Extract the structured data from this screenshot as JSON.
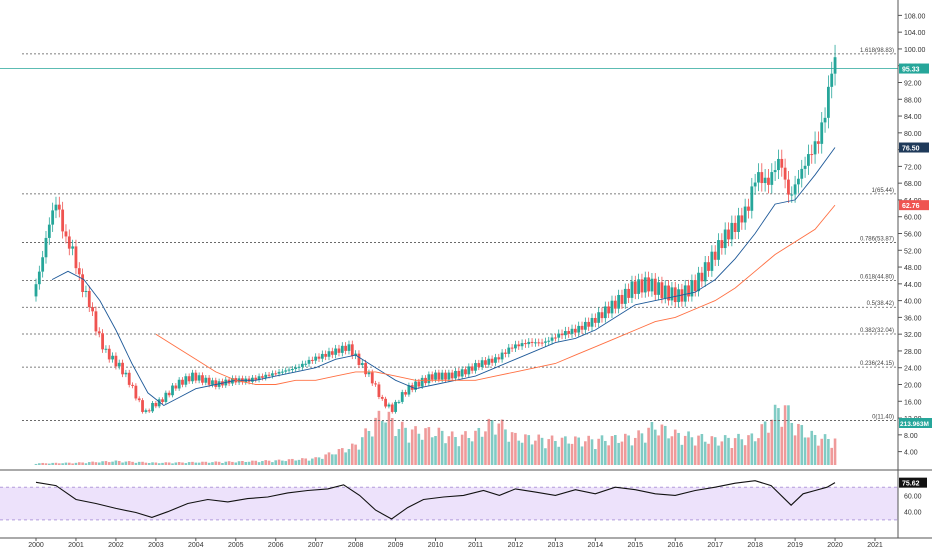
{
  "chart_data": {
    "type": "candlestick",
    "timeframe": "monthly",
    "x_axis_years": [
      "2000",
      "2001",
      "2002",
      "2003",
      "2004",
      "2005",
      "2006",
      "2007",
      "2008",
      "2009",
      "2010",
      "2011",
      "2012",
      "2013",
      "2014",
      "2015",
      "2016",
      "2017",
      "2018",
      "2019",
      "2020",
      "2021"
    ],
    "y_axis_ticks": [
      "108.00",
      "104.00",
      "100.00",
      "96.00",
      "92.00",
      "88.00",
      "84.00",
      "80.00",
      "76.00",
      "72.00",
      "68.00",
      "64.00",
      "60.00",
      "56.00",
      "52.00",
      "48.00",
      "44.00",
      "40.00",
      "36.00",
      "32.00",
      "28.00",
      "24.00",
      "20.00",
      "16.00",
      "12.00",
      "8.00",
      "4.00"
    ],
    "price_labels": [
      {
        "text": "95.33",
        "value": 95.33,
        "color": "#26a69a"
      },
      {
        "text": "76.50",
        "value": 76.5,
        "color": "#1f3a5a"
      },
      {
        "text": "62.76",
        "value": 62.76,
        "color": "#ef5350"
      }
    ],
    "volume_label": {
      "text": "213.963M",
      "color": "#26a69a"
    },
    "fibonacci_levels": [
      {
        "label": "1.618(98.83)",
        "value": 98.83
      },
      {
        "label": "1(65.44)",
        "value": 65.44
      },
      {
        "label": "0.786(53.87)",
        "value": 53.87
      },
      {
        "label": "0.618(44.80)",
        "value": 44.8
      },
      {
        "label": "0.5(38.42)",
        "value": 38.42
      },
      {
        "label": "0.382(32.04)",
        "value": 32.04
      },
      {
        "label": "0.236(24.15)",
        "value": 24.15
      },
      {
        "label": "0(11.40)",
        "value": 11.4
      }
    ],
    "last_price_line": 95.33,
    "rsi": {
      "ticks": [
        "60.00",
        "40.00"
      ],
      "current_label": "75.62",
      "band": [
        30,
        70
      ]
    },
    "price_path": [
      [
        2000.0,
        41
      ],
      [
        2000.2,
        48
      ],
      [
        2000.4,
        58
      ],
      [
        2000.6,
        64
      ],
      [
        2000.8,
        55
      ],
      [
        2001.0,
        52
      ],
      [
        2001.2,
        44
      ],
      [
        2001.4,
        40
      ],
      [
        2001.6,
        33
      ],
      [
        2001.8,
        28
      ],
      [
        2002.0,
        26
      ],
      [
        2002.2,
        24
      ],
      [
        2002.4,
        21
      ],
      [
        2002.6,
        17
      ],
      [
        2002.8,
        13
      ],
      [
        2003.0,
        15
      ],
      [
        2003.2,
        16
      ],
      [
        2003.4,
        18
      ],
      [
        2003.6,
        20
      ],
      [
        2003.8,
        21
      ],
      [
        2004.0,
        22
      ],
      [
        2004.3,
        21
      ],
      [
        2004.6,
        20
      ],
      [
        2005.0,
        21
      ],
      [
        2005.4,
        21
      ],
      [
        2005.8,
        22
      ],
      [
        2006.2,
        23
      ],
      [
        2006.6,
        24
      ],
      [
        2007.0,
        26
      ],
      [
        2007.3,
        27
      ],
      [
        2007.6,
        28
      ],
      [
        2007.9,
        29
      ],
      [
        2008.2,
        25
      ],
      [
        2008.5,
        21
      ],
      [
        2008.75,
        16
      ],
      [
        2009.0,
        14
      ],
      [
        2009.2,
        17
      ],
      [
        2009.4,
        19
      ],
      [
        2009.6,
        20
      ],
      [
        2009.8,
        21
      ],
      [
        2010.0,
        22
      ],
      [
        2010.4,
        22
      ],
      [
        2010.8,
        23
      ],
      [
        2011.2,
        25
      ],
      [
        2011.6,
        26
      ],
      [
        2012.0,
        29
      ],
      [
        2012.4,
        30
      ],
      [
        2012.8,
        30
      ],
      [
        2013.2,
        32
      ],
      [
        2013.6,
        33
      ],
      [
        2014.0,
        35
      ],
      [
        2014.4,
        38
      ],
      [
        2014.8,
        41
      ],
      [
        2015.0,
        43
      ],
      [
        2015.4,
        44
      ],
      [
        2015.8,
        42
      ],
      [
        2016.2,
        41
      ],
      [
        2016.6,
        44
      ],
      [
        2017.0,
        50
      ],
      [
        2017.3,
        55
      ],
      [
        2017.6,
        58
      ],
      [
        2017.9,
        62
      ],
      [
        2018.1,
        70
      ],
      [
        2018.4,
        68
      ],
      [
        2018.7,
        74
      ],
      [
        2018.95,
        64
      ],
      [
        2019.1,
        68
      ],
      [
        2019.4,
        74
      ],
      [
        2019.7,
        79
      ],
      [
        2019.9,
        88
      ],
      [
        2020.0,
        96
      ]
    ],
    "sma_fast_path": [
      [
        2000.4,
        45
      ],
      [
        2000.8,
        47
      ],
      [
        2001.2,
        45
      ],
      [
        2001.6,
        40
      ],
      [
        2002.0,
        33
      ],
      [
        2002.4,
        25
      ],
      [
        2002.8,
        18
      ],
      [
        2003.2,
        15
      ],
      [
        2003.6,
        17
      ],
      [
        2004.0,
        19
      ],
      [
        2004.5,
        20
      ],
      [
        2005.0,
        21
      ],
      [
        2005.5,
        21
      ],
      [
        2006.0,
        22
      ],
      [
        2006.5,
        23
      ],
      [
        2007.0,
        24
      ],
      [
        2007.5,
        26
      ],
      [
        2008.0,
        27
      ],
      [
        2008.5,
        24
      ],
      [
        2009.0,
        21
      ],
      [
        2009.5,
        19
      ],
      [
        2010.0,
        20
      ],
      [
        2010.5,
        21
      ],
      [
        2011.0,
        22
      ],
      [
        2011.5,
        24
      ],
      [
        2012.0,
        26
      ],
      [
        2012.5,
        28
      ],
      [
        2013.0,
        30
      ],
      [
        2013.5,
        31
      ],
      [
        2014.0,
        33
      ],
      [
        2014.5,
        36
      ],
      [
        2015.0,
        39
      ],
      [
        2015.5,
        40
      ],
      [
        2016.0,
        41
      ],
      [
        2016.5,
        42
      ],
      [
        2017.0,
        45
      ],
      [
        2017.5,
        50
      ],
      [
        2018.0,
        56
      ],
      [
        2018.5,
        63
      ],
      [
        2019.0,
        64
      ],
      [
        2019.5,
        70
      ],
      [
        2020.0,
        76.5
      ]
    ],
    "sma_slow_path": [
      [
        2003.0,
        32
      ],
      [
        2003.5,
        29
      ],
      [
        2004.0,
        26
      ],
      [
        2004.5,
        23
      ],
      [
        2005.0,
        21
      ],
      [
        2005.5,
        20
      ],
      [
        2006.0,
        20
      ],
      [
        2006.5,
        21
      ],
      [
        2007.0,
        21
      ],
      [
        2007.5,
        22
      ],
      [
        2008.0,
        23
      ],
      [
        2008.5,
        23
      ],
      [
        2009.0,
        22
      ],
      [
        2009.5,
        21
      ],
      [
        2010.0,
        21
      ],
      [
        2010.5,
        21
      ],
      [
        2011.0,
        21
      ],
      [
        2011.5,
        22
      ],
      [
        2012.0,
        23
      ],
      [
        2012.5,
        24
      ],
      [
        2013.0,
        25
      ],
      [
        2013.5,
        27
      ],
      [
        2014.0,
        29
      ],
      [
        2014.5,
        31
      ],
      [
        2015.0,
        33
      ],
      [
        2015.5,
        35
      ],
      [
        2016.0,
        36
      ],
      [
        2016.5,
        38
      ],
      [
        2017.0,
        40
      ],
      [
        2017.5,
        43
      ],
      [
        2018.0,
        47
      ],
      [
        2018.5,
        51
      ],
      [
        2019.0,
        54
      ],
      [
        2019.5,
        57
      ],
      [
        2020.0,
        62.76
      ]
    ],
    "rsi_path": [
      [
        2000.0,
        76
      ],
      [
        2000.5,
        72
      ],
      [
        2001.0,
        55
      ],
      [
        2001.5,
        50
      ],
      [
        2002.0,
        44
      ],
      [
        2002.5,
        39
      ],
      [
        2002.9,
        33
      ],
      [
        2003.3,
        40
      ],
      [
        2003.8,
        50
      ],
      [
        2004.3,
        55
      ],
      [
        2004.8,
        52
      ],
      [
        2005.3,
        56
      ],
      [
        2005.8,
        58
      ],
      [
        2006.3,
        63
      ],
      [
        2006.8,
        66
      ],
      [
        2007.3,
        68
      ],
      [
        2007.7,
        73
      ],
      [
        2008.1,
        60
      ],
      [
        2008.5,
        42
      ],
      [
        2008.9,
        31
      ],
      [
        2009.3,
        45
      ],
      [
        2009.7,
        55
      ],
      [
        2010.2,
        58
      ],
      [
        2010.7,
        60
      ],
      [
        2011.2,
        66
      ],
      [
        2011.6,
        60
      ],
      [
        2012.0,
        68
      ],
      [
        2012.5,
        64
      ],
      [
        2013.0,
        60
      ],
      [
        2013.5,
        67
      ],
      [
        2014.0,
        62
      ],
      [
        2014.5,
        70
      ],
      [
        2015.0,
        67
      ],
      [
        2015.5,
        62
      ],
      [
        2016.0,
        60
      ],
      [
        2016.5,
        66
      ],
      [
        2017.0,
        70
      ],
      [
        2017.5,
        75
      ],
      [
        2018.0,
        78
      ],
      [
        2018.4,
        72
      ],
      [
        2018.9,
        48
      ],
      [
        2019.2,
        62
      ],
      [
        2019.5,
        66
      ],
      [
        2019.8,
        70
      ],
      [
        2020.0,
        75.62
      ]
    ],
    "volume_path": [
      [
        2000.0,
        0.3
      ],
      [
        2001.0,
        0.4
      ],
      [
        2002.0,
        0.7
      ],
      [
        2003.0,
        0.4
      ],
      [
        2004.0,
        0.5
      ],
      [
        2005.0,
        0.6
      ],
      [
        2006.0,
        0.8
      ],
      [
        2007.0,
        1.2
      ],
      [
        2008.0,
        3.5
      ],
      [
        2008.7,
        9.5
      ],
      [
        2009.0,
        7
      ],
      [
        2009.5,
        6
      ],
      [
        2010.0,
        6
      ],
      [
        2010.5,
        5
      ],
      [
        2011.0,
        5.5
      ],
      [
        2011.5,
        8
      ],
      [
        2012.0,
        5
      ],
      [
        2013.0,
        4.5
      ],
      [
        2014.0,
        4.5
      ],
      [
        2015.0,
        5
      ],
      [
        2015.5,
        7
      ],
      [
        2016.0,
        5.5
      ],
      [
        2017.0,
        4.5
      ],
      [
        2018.0,
        5
      ],
      [
        2018.7,
        11
      ],
      [
        2019.0,
        7
      ],
      [
        2019.5,
        5
      ],
      [
        2020.0,
        4.5
      ]
    ]
  }
}
